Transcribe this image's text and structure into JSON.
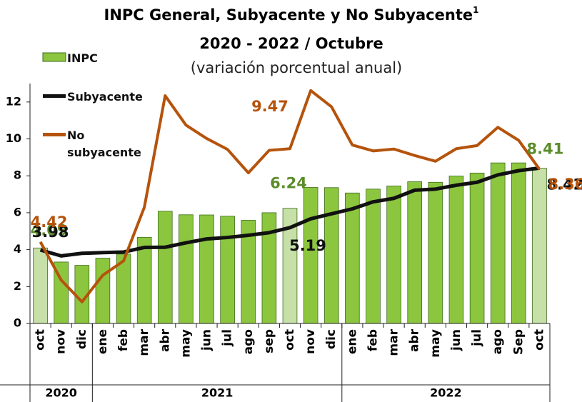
{
  "chart_data": {
    "type": "bar_line",
    "title": "INPC General, Subyacente y No Subyacente",
    "title_superscript": "1",
    "subtitle": "2020 - 2022 / Octubre",
    "note": "(variación porcentual anual)",
    "categories": [
      "oct",
      "nov",
      "dic",
      "ene",
      "feb",
      "mar",
      "abr",
      "may",
      "jun",
      "jul",
      "ago",
      "sep",
      "oct",
      "nov",
      "dic",
      "ene",
      "feb",
      "mar",
      "abr",
      "may",
      "jun",
      "jul",
      "ago",
      "Sep",
      "oct"
    ],
    "year_groups": [
      {
        "label": "2020",
        "count": 3
      },
      {
        "label": "2021",
        "count": 12
      },
      {
        "label": "2022",
        "count": 10
      }
    ],
    "ylim": [
      0,
      13
    ],
    "yticks": [
      0,
      2,
      4,
      6,
      8,
      10,
      12
    ],
    "series": [
      {
        "name": "INPC",
        "kind": "bar",
        "color": "#8cc63f",
        "highlight_color": "#c6e0a8",
        "label_color": "#5b8c2a",
        "highlighted": [
          0,
          12,
          24
        ],
        "labeled": [
          0,
          12,
          24
        ],
        "values": [
          4.09,
          3.33,
          3.15,
          3.54,
          3.76,
          4.67,
          6.08,
          5.89,
          5.88,
          5.81,
          5.59,
          6.0,
          6.24,
          7.37,
          7.36,
          7.07,
          7.28,
          7.45,
          7.68,
          7.65,
          7.99,
          8.15,
          8.7,
          8.7,
          8.41
        ]
      },
      {
        "name": "Subyacente",
        "kind": "line",
        "color": "#111111",
        "label_color": "#111111",
        "labeled": [
          0,
          12,
          24
        ],
        "values": [
          3.98,
          3.66,
          3.8,
          3.84,
          3.87,
          4.12,
          4.13,
          4.37,
          4.58,
          4.66,
          4.78,
          4.92,
          5.19,
          5.67,
          5.94,
          6.21,
          6.59,
          6.78,
          7.22,
          7.28,
          7.49,
          7.65,
          8.05,
          8.28,
          8.42
        ]
      },
      {
        "name": "No subyacente",
        "kind": "line",
        "color": "#b5530c",
        "label_color": "#b5530c",
        "labeled": [
          0,
          12,
          24
        ],
        "values": [
          4.42,
          2.35,
          1.17,
          2.61,
          3.39,
          6.3,
          12.34,
          10.75,
          10.02,
          9.43,
          8.16,
          9.38,
          9.47,
          12.62,
          11.74,
          9.67,
          9.35,
          9.45,
          9.1,
          8.79,
          9.47,
          9.64,
          10.63,
          9.92,
          8.36
        ]
      }
    ]
  }
}
